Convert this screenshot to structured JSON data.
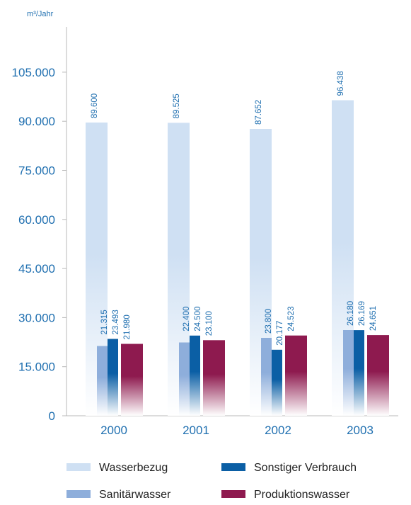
{
  "chart_data": {
    "type": "bar",
    "ylabel": "m³/Jahr",
    "categories": [
      "2000",
      "2001",
      "2002",
      "2003"
    ],
    "ylim": [
      0,
      120000
    ],
    "yticks": [
      0,
      15000,
      30000,
      45000,
      60000,
      75000,
      90000,
      105000
    ],
    "ytick_labels": [
      "0",
      "15.000",
      "30.000",
      "45.000",
      "60.000",
      "75.000",
      "90.000",
      "105.000"
    ],
    "grid": false,
    "legend_position": "bottom",
    "series": [
      {
        "name": "Wasserbezug",
        "color": "#cfe0f3",
        "values": [
          89600,
          89525,
          87652,
          96438
        ],
        "labels": [
          "89.600",
          "89.525",
          "87.652",
          "96.438"
        ]
      },
      {
        "name": "Sanitärwasser",
        "color": "#8eaedb",
        "values": [
          21315,
          22400,
          23800,
          26180
        ],
        "labels": [
          "21.315",
          "22.400",
          "23.800",
          "26.180"
        ]
      },
      {
        "name": "Sonstiger Verbrauch",
        "color": "#0b5fa5",
        "values": [
          23493,
          24500,
          20177,
          26169
        ],
        "labels": [
          "23.493",
          "24.500",
          "20.177",
          "26.169"
        ]
      },
      {
        "name": "Produktionswasser",
        "color": "#8e1a4f",
        "values": [
          21980,
          23100,
          24523,
          24651
        ],
        "labels": [
          "21.980",
          "23.100",
          "24.523",
          "24.651"
        ]
      }
    ],
    "legend": [
      {
        "name": "Wasserbezug",
        "color": "#cfe0f3"
      },
      {
        "name": "Sonstiger Verbrauch",
        "color": "#0b5fa5"
      },
      {
        "name": "Sanitärwasser",
        "color": "#8eaedb"
      },
      {
        "name": "Produktionswasser",
        "color": "#8e1a4f"
      }
    ]
  }
}
